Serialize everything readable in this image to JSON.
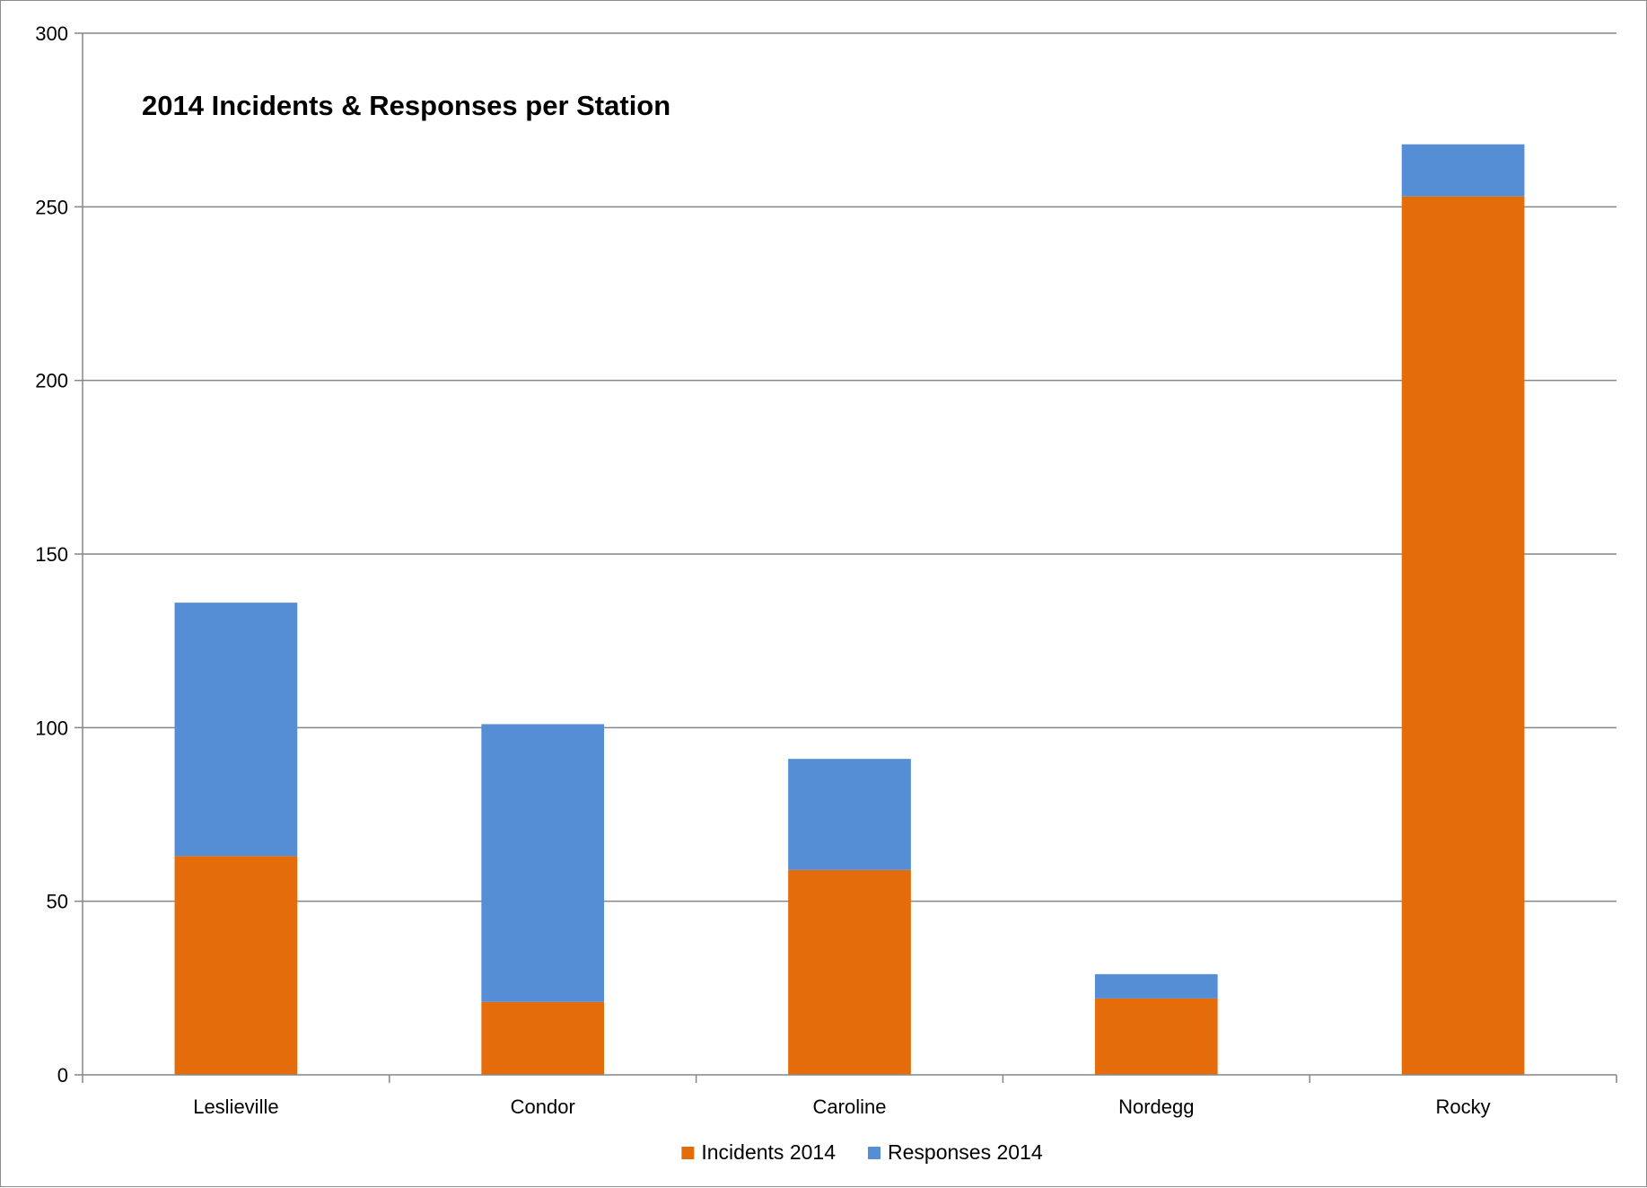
{
  "chart_data": {
    "type": "bar",
    "stacked": true,
    "title": "2014 Incidents & Responses per Station",
    "xlabel": "",
    "ylabel": "",
    "ylim": [
      0,
      300
    ],
    "yticks": [
      0,
      50,
      100,
      150,
      200,
      250,
      300
    ],
    "grid": true,
    "legend_position": "bottom",
    "categories": [
      "Leslieville",
      "Condor",
      "Caroline",
      "Nordegg",
      "Rocky"
    ],
    "series": [
      {
        "name": "Incidents 2014",
        "color": "#E46C0A",
        "values": [
          63,
          21,
          59,
          22,
          253
        ]
      },
      {
        "name": "Responses 2014",
        "color": "#558ED5",
        "values": [
          73,
          80,
          32,
          7,
          15
        ]
      }
    ]
  }
}
